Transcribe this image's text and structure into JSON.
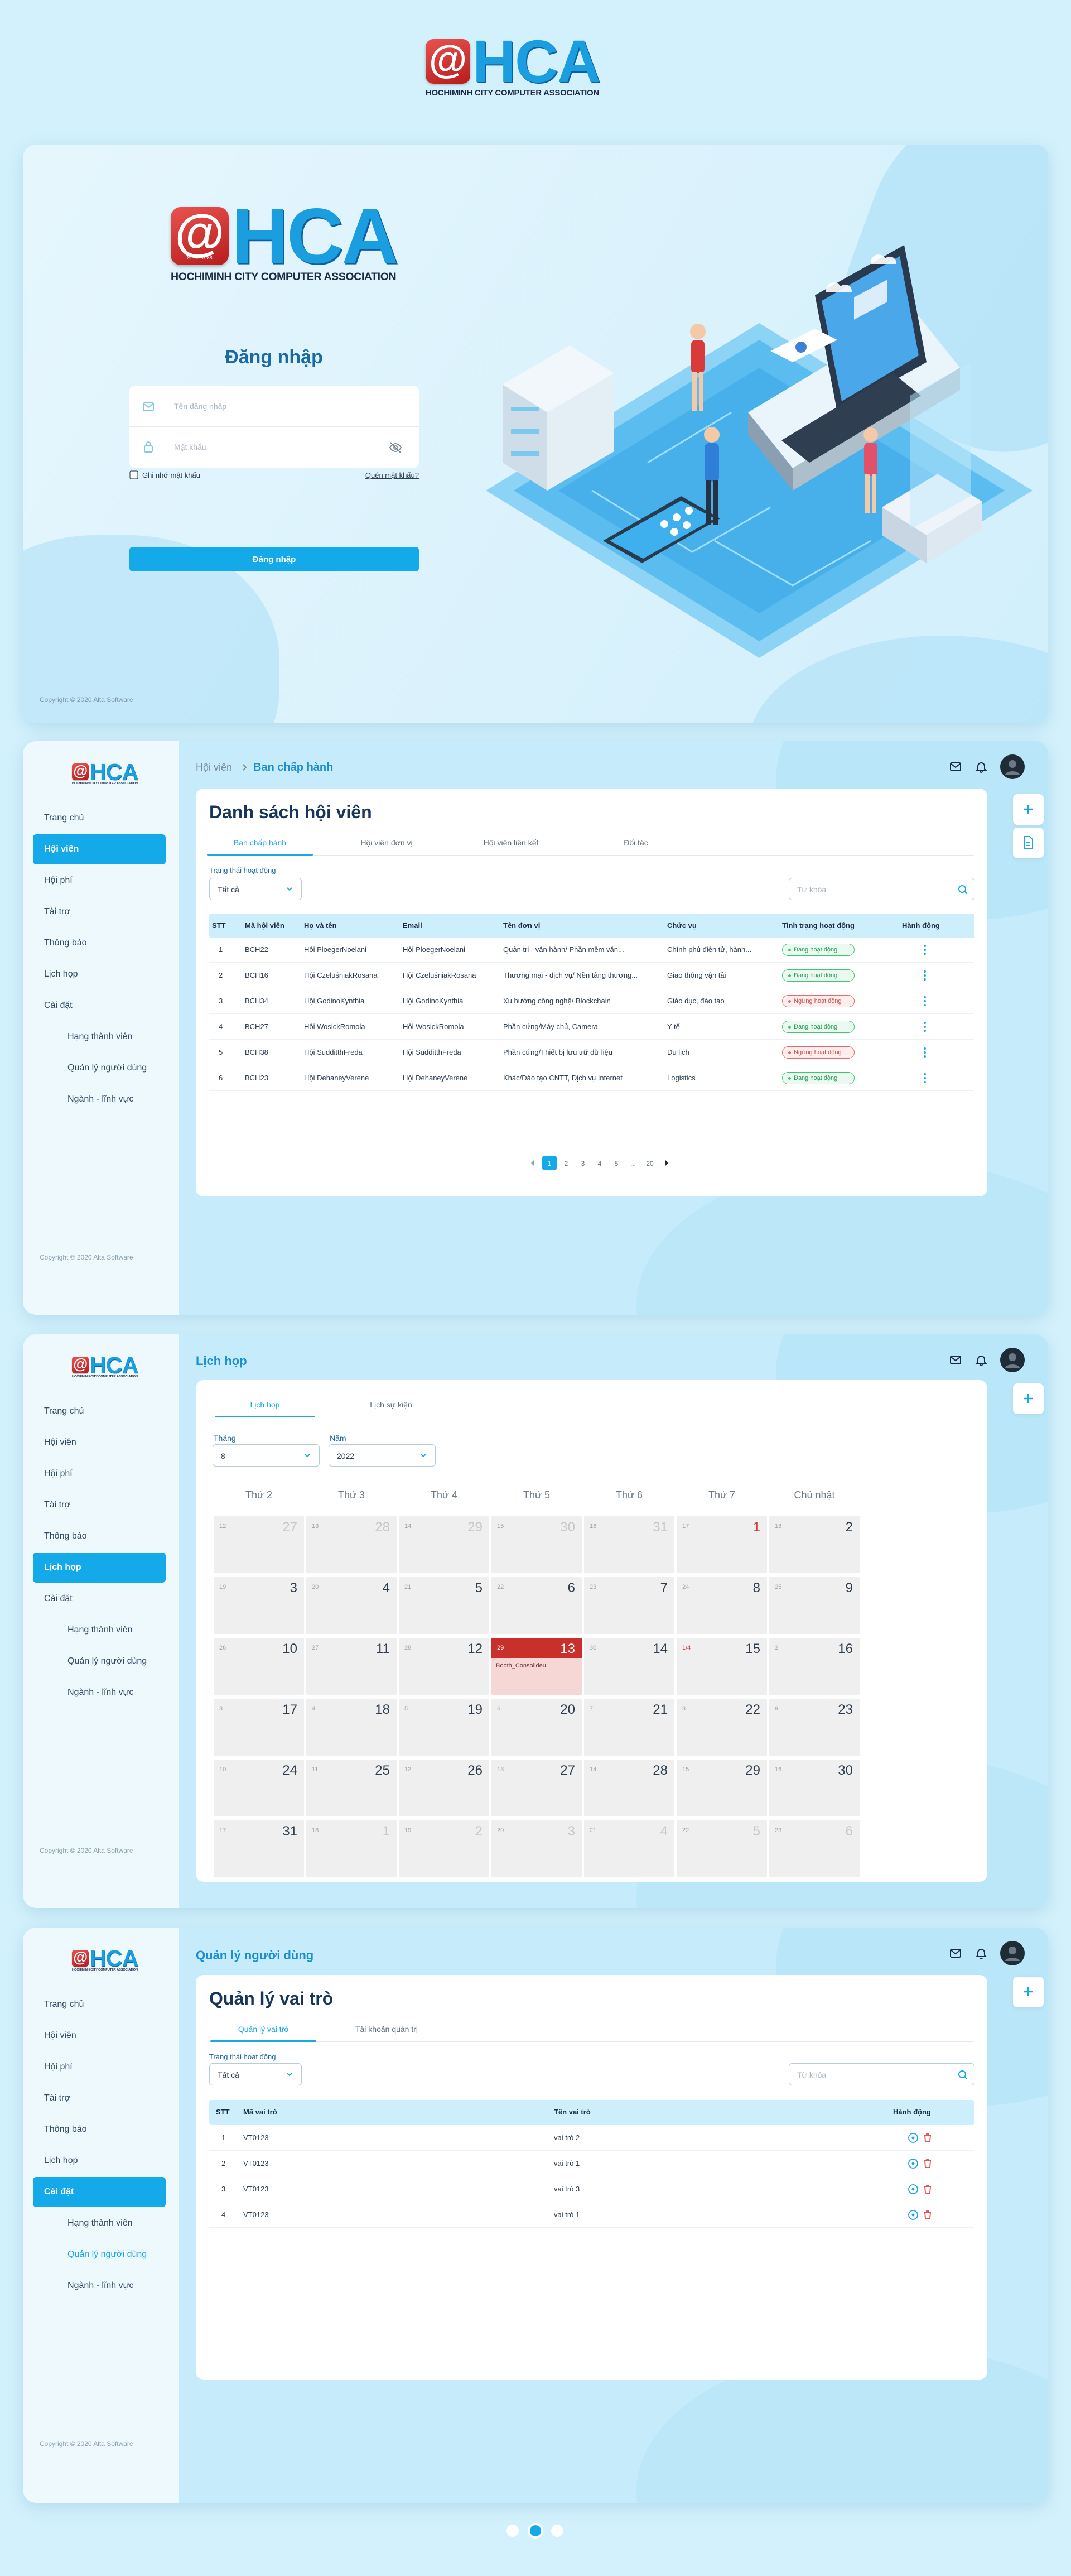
{
  "header": {
    "logo_mark": "@",
    "logo_text": "HCA",
    "logo_subtitle": "HOCHIMINH CITY COMPUTER ASSOCIATION"
  },
  "login": {
    "logo_mark": "@",
    "logo_since": "Since 1988",
    "logo_text": "HCA",
    "logo_subtitle": "HOCHIMINH CITY COMPUTER ASSOCIATION",
    "title": "Đăng nhập",
    "username_placeholder": "Tên đăng nhập",
    "password_placeholder": "Mật khẩu",
    "remember": "Ghi nhớ mật khẩu",
    "forgot": "Quên mật khẩu?",
    "submit": "Đăng nhập",
    "copyright": "Copyright © 2020 Alta Software"
  },
  "sidebar": {
    "logo_mark": "@",
    "logo_text": "HCA",
    "logo_subtitle": "HOCHIMINH CITY COMPUTER ASSOCIATION",
    "items": [
      "Trang chủ",
      "Hội viên",
      "Hội phí",
      "Tài trợ",
      "Thông báo",
      "Lịch họp",
      "Cài đặt"
    ],
    "subitems": [
      "Hạng thành viên",
      "Quản lý người dùng",
      "Ngành - lĩnh vực"
    ],
    "copyright": "Copyright © 2020 Alta Software"
  },
  "members": {
    "breadcrumb_parent": "Hội viên",
    "breadcrumb_current": "Ban chấp hành",
    "title": "Danh sách hội viên",
    "tabs": [
      "Ban chấp hành",
      "Hội viên đơn vị",
      "Hội viên liên kết",
      "Đối tác"
    ],
    "filter_label": "Trạng thái hoạt động",
    "filter_value": "Tất cả",
    "search_placeholder": "Từ khóa",
    "columns": [
      "STT",
      "Mã hội viên",
      "Họ và tên",
      "Email",
      "Tên đơn vị",
      "Chức vụ",
      "Tình trạng hoạt động",
      "Hành động"
    ],
    "rows": [
      [
        "1",
        "BCH22",
        "Hội PloegerNoelani",
        "Hội PloegerNoelani",
        "Quản trị - vận hành/ Phần mềm văn...",
        "Chính phủ điện tử, hành...",
        "Đang hoạt động"
      ],
      [
        "2",
        "BCH16",
        "Hội CzeluśniakRosana",
        "Hội CzeluśniakRosana",
        "Thương mại - dịch vụ/ Nền tảng thương...",
        "Giao thông vận tải",
        "Đang hoạt động"
      ],
      [
        "3",
        "BCH34",
        "Hội GodinoKynthia",
        "Hội GodinoKynthia",
        "Xu hướng công nghệ/ Blockchain",
        "Giáo dục, đào tạo",
        "Ngừng hoạt động"
      ],
      [
        "4",
        "BCH27",
        "Hội WosickRomola",
        "Hội WosickRomola",
        "Phần cứng/Máy chủ, Camera",
        "Y tế",
        "Đang hoạt động"
      ],
      [
        "5",
        "BCH38",
        "Hội SudditthFreda",
        "Hội SudditthFreda",
        "Phần cứng/Thiết bị lưu trữ dữ liệu",
        "Du lịch",
        "Ngừng hoạt động"
      ],
      [
        "6",
        "BCH23",
        "Hội DehaneyVerene",
        "Hội DehaneyVerene",
        "Khác/Đào tạo CNTT, Dịch vụ Internet",
        "Logistics",
        "Đang hoạt động"
      ]
    ],
    "pages": [
      "1",
      "2",
      "3",
      "4",
      "5",
      "...",
      "20"
    ]
  },
  "calendar": {
    "title": "Lịch họp",
    "tabs": [
      "Lịch họp",
      "Lịch sự kiện"
    ],
    "month_label": "Tháng",
    "month_value": "8",
    "year_label": "Năm",
    "year_value": "2022",
    "weekdays": [
      "Thứ 2",
      "Thứ 3",
      "Thứ 4",
      "Thứ 5",
      "Thứ 6",
      "Thứ 7",
      "Chủ nhật"
    ],
    "cells": [
      {
        "lunar": "12",
        "day": "27"
      },
      {
        "lunar": "13",
        "day": "28"
      },
      {
        "lunar": "14",
        "day": "29"
      },
      {
        "lunar": "15",
        "day": "30"
      },
      {
        "lunar": "16",
        "day": "31"
      },
      {
        "lunar": "17",
        "day": "1"
      },
      {
        "lunar": "18",
        "day": "2"
      },
      {
        "lunar": "19",
        "day": "3"
      },
      {
        "lunar": "20",
        "day": "4"
      },
      {
        "lunar": "21",
        "day": "5"
      },
      {
        "lunar": "22",
        "day": "6"
      },
      {
        "lunar": "23",
        "day": "7"
      },
      {
        "lunar": "24",
        "day": "8"
      },
      {
        "lunar": "25",
        "day": "9"
      },
      {
        "lunar": "26",
        "day": "10"
      },
      {
        "lunar": "27",
        "day": "11"
      },
      {
        "lunar": "28",
        "day": "12"
      },
      {
        "lunar": "29",
        "day": "13",
        "event": "Booth_Consolideu"
      },
      {
        "lunar": "30",
        "day": "14"
      },
      {
        "lunar": "1/4",
        "day": "15"
      },
      {
        "lunar": "2",
        "day": "16"
      },
      {
        "lunar": "3",
        "day": "17"
      },
      {
        "lunar": "4",
        "day": "18"
      },
      {
        "lunar": "5",
        "day": "19"
      },
      {
        "lunar": "6",
        "day": "20"
      },
      {
        "lunar": "7",
        "day": "21"
      },
      {
        "lunar": "8",
        "day": "22"
      },
      {
        "lunar": "9",
        "day": "23"
      },
      {
        "lunar": "10",
        "day": "24"
      },
      {
        "lunar": "11",
        "day": "25"
      },
      {
        "lunar": "12",
        "day": "26"
      },
      {
        "lunar": "13",
        "day": "27"
      },
      {
        "lunar": "14",
        "day": "28"
      },
      {
        "lunar": "15",
        "day": "29"
      },
      {
        "lunar": "16",
        "day": "30"
      },
      {
        "lunar": "17",
        "day": "31"
      },
      {
        "lunar": "18",
        "day": "1"
      },
      {
        "lunar": "19",
        "day": "2"
      },
      {
        "lunar": "20",
        "day": "3"
      },
      {
        "lunar": "21",
        "day": "4"
      },
      {
        "lunar": "22",
        "day": "5"
      },
      {
        "lunar": "23",
        "day": "6"
      }
    ]
  },
  "users": {
    "title": "Quản lý người dùng",
    "section_title": "Quản lý vai trò",
    "tabs": [
      "Quản lý vai trò",
      "Tài khoản quản trị"
    ],
    "filter_label": "Trạng thái hoạt động",
    "filter_value": "Tất cả",
    "search_placeholder": "Từ khóa",
    "columns": [
      "STT",
      "Mã vai trò",
      "Tên vai trò",
      "Hành động"
    ],
    "rows": [
      [
        "1",
        "VT0123",
        "vai trò 2"
      ],
      [
        "2",
        "VT0123",
        "vai trò 1"
      ],
      [
        "3",
        "VT0123",
        "vai trò 3"
      ],
      [
        "4",
        "VT0123",
        "vai trò 1"
      ]
    ]
  }
}
